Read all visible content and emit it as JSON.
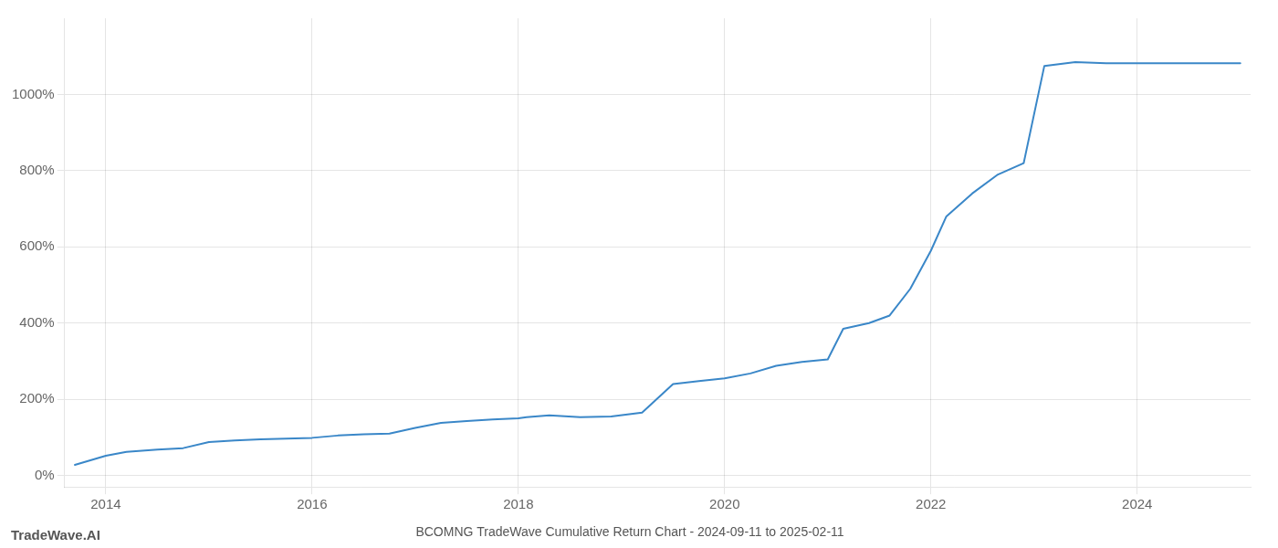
{
  "chart_data": {
    "type": "line",
    "title": "BCOMNG TradeWave Cumulative Return Chart - 2024-09-11 to 2025-02-11",
    "annotations": [
      "TradeWave.AI"
    ],
    "color": "#3a87c8",
    "grid": true,
    "x": [
      2013.7,
      2014.0,
      2014.2,
      2014.5,
      2014.75,
      2015.0,
      2015.25,
      2015.5,
      2015.75,
      2016.0,
      2016.25,
      2016.5,
      2016.75,
      2017.0,
      2017.25,
      2017.5,
      2017.75,
      2018.0,
      2018.08,
      2018.3,
      2018.6,
      2018.9,
      2019.2,
      2019.5,
      2019.75,
      2020.0,
      2020.25,
      2020.5,
      2020.75,
      2021.0,
      2021.15,
      2021.4,
      2021.6,
      2021.8,
      2022.0,
      2022.15,
      2022.4,
      2022.65,
      2022.9,
      2023.1,
      2023.4,
      2023.7,
      2024.0,
      2024.3,
      2024.7,
      2025.0
    ],
    "values": [
      28,
      52,
      62,
      68,
      72,
      88,
      92,
      95,
      97,
      99,
      105,
      108,
      110,
      125,
      138,
      143,
      147,
      150,
      153,
      158,
      153,
      155,
      165,
      240,
      248,
      255,
      268,
      288,
      298,
      305,
      385,
      400,
      420,
      490,
      590,
      680,
      740,
      790,
      820,
      1075,
      1085,
      1082,
      1082,
      1082,
      1082,
      1082
    ],
    "xlim": [
      2013.6,
      2025.1
    ],
    "xticks": [
      2014,
      2016,
      2018,
      2020,
      2022,
      2024
    ],
    "ylim": [
      -30,
      1200
    ],
    "yticks": [
      {
        "value": 0,
        "label": "0%"
      },
      {
        "value": 200,
        "label": "200%"
      },
      {
        "value": 400,
        "label": "400%"
      },
      {
        "value": 600,
        "label": "600%"
      },
      {
        "value": 800,
        "label": "800%"
      },
      {
        "value": 1000,
        "label": "1000%"
      }
    ]
  }
}
